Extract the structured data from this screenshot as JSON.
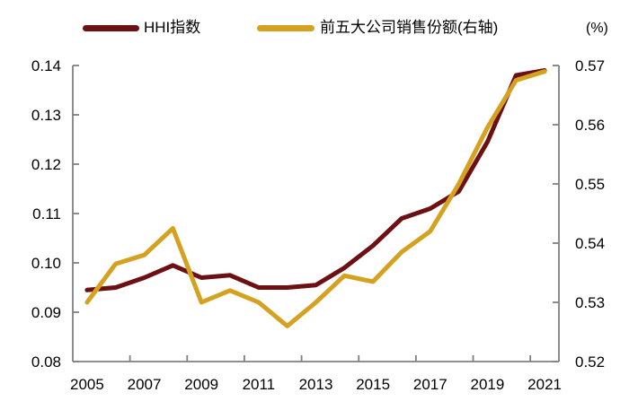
{
  "legend": [
    {
      "label": "HHI指数",
      "color": "#6D1013"
    },
    {
      "label": "前五大公司销售份额(右轴)",
      "color": "#D5A120"
    }
  ],
  "unit_label": "(%)",
  "colors": {
    "hhi_line": "#6D1013",
    "share_line": "#D5A120",
    "axis": "#808080",
    "tick_text": "#000000",
    "background": "#FFFFFF"
  },
  "chart_data": {
    "type": "line",
    "title": "",
    "x": [
      2005,
      2006,
      2007,
      2008,
      2009,
      2010,
      2011,
      2012,
      2013,
      2014,
      2015,
      2016,
      2017,
      2018,
      2019,
      2020,
      2021
    ],
    "x_tick_labels": [
      "2005",
      "2007",
      "2009",
      "2011",
      "2013",
      "2015",
      "2017",
      "2019",
      "2021"
    ],
    "series": [
      {
        "name": "HHI指数",
        "axis": "left",
        "color": "#6D1013",
        "values": [
          0.0945,
          0.095,
          0.097,
          0.0995,
          0.097,
          0.0975,
          0.095,
          0.095,
          0.0955,
          0.099,
          0.1035,
          0.109,
          0.111,
          0.1145,
          0.1245,
          0.138,
          0.139
        ]
      },
      {
        "name": "前五大公司销售份额(右轴)",
        "axis": "right",
        "color": "#D5A120",
        "values": [
          0.53,
          0.5365,
          0.538,
          0.5425,
          0.53,
          0.532,
          0.53,
          0.526,
          0.53,
          0.5345,
          0.5335,
          0.5385,
          0.542,
          0.55,
          0.5595,
          0.5675,
          0.569
        ]
      }
    ],
    "left_axis": {
      "min": 0.08,
      "max": 0.14,
      "ticks": [
        "0.14",
        "0.13",
        "0.12",
        "0.11",
        "0.10",
        "0.09",
        "0.08"
      ]
    },
    "right_axis": {
      "min": 0.52,
      "max": 0.57,
      "ticks": [
        "0.57",
        "0.56",
        "0.55",
        "0.54",
        "0.53",
        "0.52"
      ]
    },
    "grid": false,
    "legend_position": "top"
  }
}
